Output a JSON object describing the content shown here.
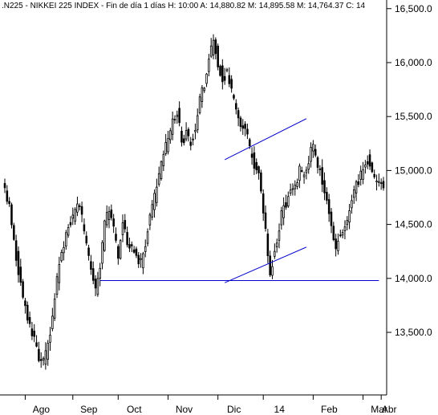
{
  "header": {
    "symbol": ".N225",
    "name": "NIKKEI 225 INDEX",
    "period": "Fin de día 1 días",
    "high": "H: 10:00",
    "ask": "A: 14,880.82",
    "mid": "M: 14,895.58",
    "low": "M: 14,764.37",
    "close": "C: 14"
  },
  "colors": {
    "candle_up": "#ffffff",
    "candle_outline": "#000000",
    "trendline": "#0000cc",
    "axis": "#000000",
    "tick_line": "#000000"
  },
  "chart_data": {
    "type": "candlestick",
    "title": "",
    "xlabel": "",
    "ylabel": "",
    "x_months": [
      "Ago",
      "Sep",
      "Oct",
      "Nov",
      "Dic",
      "14",
      "Feb",
      "Mar",
      "Abr"
    ],
    "y_ticks": [
      "13,500.0",
      "14,000.0",
      "14,500.0",
      "15,000.0",
      "15,500.0",
      "16,000.0",
      "16,500.0"
    ],
    "y_tick_values": [
      13500,
      14000,
      14500,
      15000,
      15500,
      16000,
      16500
    ],
    "ylim": [
      12920,
      16580
    ],
    "n_sessions": 168,
    "month_start_index": [
      9,
      30,
      50,
      72,
      94,
      114,
      136,
      158,
      166
    ],
    "anchors": [
      [
        0,
        14800
      ],
      [
        2,
        14650
      ],
      [
        5,
        14200
      ],
      [
        8,
        13800
      ],
      [
        10,
        13650
      ],
      [
        12,
        13500
      ],
      [
        14,
        13350
      ],
      [
        16,
        13200
      ],
      [
        18,
        13300
      ],
      [
        20,
        13500
      ],
      [
        22,
        13800
      ],
      [
        24,
        14150
      ],
      [
        26,
        14300
      ],
      [
        28,
        14500
      ],
      [
        30,
        14550
      ],
      [
        32,
        14700
      ],
      [
        34,
        14550
      ],
      [
        36,
        14300
      ],
      [
        38,
        14050
      ],
      [
        40,
        13900
      ],
      [
        42,
        14100
      ],
      [
        44,
        14500
      ],
      [
        46,
        14650
      ],
      [
        48,
        14450
      ],
      [
        50,
        14200
      ],
      [
        52,
        14550
      ],
      [
        54,
        14350
      ],
      [
        56,
        14300
      ],
      [
        58,
        14200
      ],
      [
        60,
        14150
      ],
      [
        62,
        14300
      ],
      [
        64,
        14600
      ],
      [
        66,
        14750
      ],
      [
        68,
        14950
      ],
      [
        70,
        15150
      ],
      [
        72,
        15300
      ],
      [
        74,
        15450
      ],
      [
        76,
        15550
      ],
      [
        78,
        15250
      ],
      [
        80,
        15350
      ],
      [
        82,
        15250
      ],
      [
        84,
        15400
      ],
      [
        86,
        15650
      ],
      [
        88,
        15800
      ],
      [
        90,
        16050
      ],
      [
        92,
        16200
      ],
      [
        94,
        16000
      ],
      [
        96,
        15850
      ],
      [
        98,
        15900
      ],
      [
        100,
        15750
      ],
      [
        102,
        15600
      ],
      [
        104,
        15450
      ],
      [
        106,
        15400
      ],
      [
        108,
        15200
      ],
      [
        110,
        15050
      ],
      [
        112,
        14950
      ],
      [
        114,
        14650
      ],
      [
        115,
        14450
      ],
      [
        116,
        14200
      ],
      [
        117,
        14050
      ],
      [
        118,
        14150
      ],
      [
        120,
        14350
      ],
      [
        122,
        14600
      ],
      [
        124,
        14700
      ],
      [
        126,
        14800
      ],
      [
        128,
        14850
      ],
      [
        130,
        15000
      ],
      [
        132,
        14950
      ],
      [
        134,
        15100
      ],
      [
        136,
        15250
      ],
      [
        138,
        15050
      ],
      [
        140,
        14900
      ],
      [
        142,
        14700
      ],
      [
        144,
        14500
      ],
      [
        146,
        14300
      ],
      [
        148,
        14400
      ],
      [
        150,
        14450
      ],
      [
        152,
        14600
      ],
      [
        154,
        14800
      ],
      [
        156,
        14900
      ],
      [
        158,
        15000
      ],
      [
        160,
        15100
      ],
      [
        162,
        14950
      ],
      [
        164,
        14900
      ],
      [
        166,
        14880
      ],
      [
        167,
        14850
      ]
    ],
    "trendlines": [
      {
        "from": [
          42,
          13980
        ],
        "to": [
          165,
          13980
        ]
      },
      {
        "from": [
          97,
          15100
        ],
        "to": [
          133,
          15480
        ]
      },
      {
        "from": [
          97,
          13960
        ],
        "to": [
          133,
          14290
        ]
      }
    ]
  }
}
